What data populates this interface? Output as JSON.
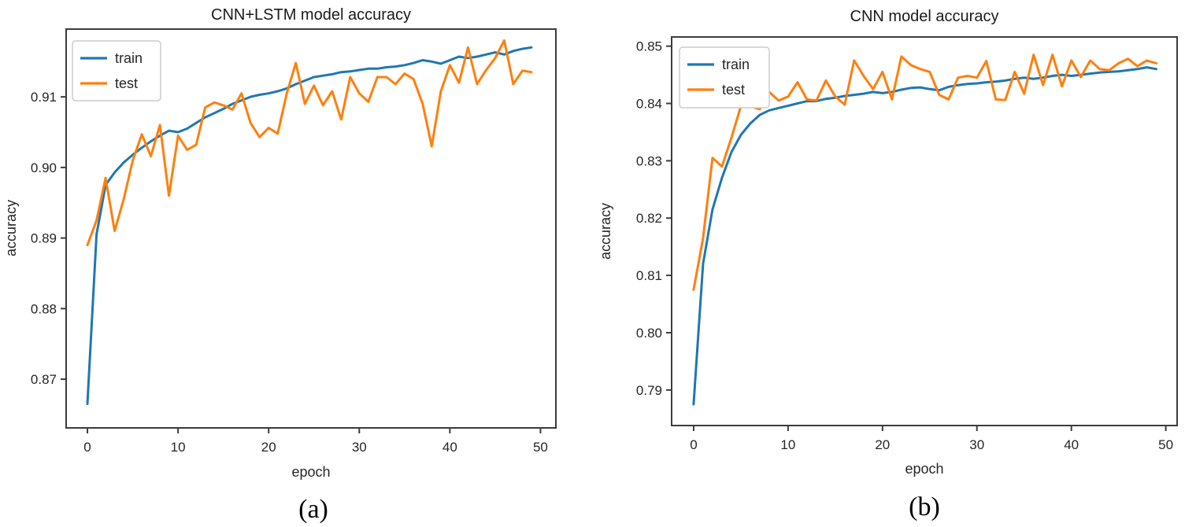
{
  "page": {
    "background": "#ffffff"
  },
  "colors": {
    "train": "#1f77b4",
    "test": "#ff7f0e",
    "frame": "#3c3c3c"
  },
  "chart_data": [
    {
      "id": "a",
      "type": "line",
      "title": "CNN+LSTM model accuracy",
      "xlabel": "epoch",
      "ylabel": "accuracy",
      "caption": "(a)",
      "grid": false,
      "legend_position": "upper left",
      "xlim": [
        -2.35,
        51.7
      ],
      "ylim": [
        0.8631,
        0.9196
      ],
      "xticks": [
        0,
        10,
        20,
        30,
        40,
        50
      ],
      "xtick_labels": [
        "0",
        "10",
        "20",
        "30",
        "40",
        "50"
      ],
      "yticks": [
        0.87,
        0.88,
        0.89,
        0.9,
        0.91
      ],
      "ytick_labels": [
        "0.87",
        "0.88",
        "0.89",
        "0.90",
        "0.91"
      ],
      "epochs": [
        0,
        1,
        2,
        3,
        4,
        5,
        6,
        7,
        8,
        9,
        10,
        11,
        12,
        13,
        14,
        15,
        16,
        17,
        18,
        19,
        20,
        21,
        22,
        23,
        24,
        25,
        26,
        27,
        28,
        29,
        30,
        31,
        32,
        33,
        34,
        35,
        36,
        37,
        38,
        39,
        40,
        41,
        42,
        43,
        44,
        45,
        46,
        47,
        48,
        49
      ],
      "series": [
        {
          "name": "train",
          "color": "#1f77b4",
          "values": [
            0.8665,
            0.8905,
            0.8975,
            0.8993,
            0.9007,
            0.9018,
            0.9028,
            0.9037,
            0.9045,
            0.9052,
            0.905,
            0.9055,
            0.9063,
            0.9071,
            0.9077,
            0.9083,
            0.909,
            0.9095,
            0.91,
            0.9103,
            0.9105,
            0.9108,
            0.9112,
            0.9118,
            0.9123,
            0.9128,
            0.913,
            0.9132,
            0.9135,
            0.9136,
            0.9138,
            0.914,
            0.914,
            0.9142,
            0.9143,
            0.9145,
            0.9148,
            0.9152,
            0.915,
            0.9147,
            0.9152,
            0.9157,
            0.9155,
            0.9157,
            0.916,
            0.9163,
            0.916,
            0.9165,
            0.9168,
            0.917
          ]
        },
        {
          "name": "test",
          "color": "#ff7f0e",
          "values": [
            0.889,
            0.8925,
            0.8985,
            0.891,
            0.8955,
            0.901,
            0.9047,
            0.9016,
            0.906,
            0.896,
            0.9045,
            0.9025,
            0.9032,
            0.9085,
            0.9092,
            0.9088,
            0.9082,
            0.9105,
            0.9063,
            0.9043,
            0.9056,
            0.9048,
            0.9105,
            0.9148,
            0.909,
            0.9116,
            0.9088,
            0.9108,
            0.9068,
            0.9128,
            0.9105,
            0.9093,
            0.9128,
            0.9128,
            0.9118,
            0.9133,
            0.9125,
            0.909,
            0.903,
            0.9108,
            0.9145,
            0.912,
            0.917,
            0.9118,
            0.9138,
            0.9155,
            0.918,
            0.9118,
            0.9137,
            0.9135
          ]
        }
      ]
    },
    {
      "id": "b",
      "type": "line",
      "title": "CNN model accuracy",
      "xlabel": "epoch",
      "ylabel": "accuracy",
      "caption": "(b)",
      "grid": false,
      "legend_position": "upper left",
      "xlim": [
        -2.33,
        51.2
      ],
      "ylim": [
        0.7838,
        0.8516
      ],
      "xticks": [
        0,
        10,
        20,
        30,
        40,
        50
      ],
      "xtick_labels": [
        "0",
        "10",
        "20",
        "30",
        "40",
        "50"
      ],
      "yticks": [
        0.79,
        0.8,
        0.81,
        0.82,
        0.83,
        0.84,
        0.85
      ],
      "ytick_labels": [
        "0.79",
        "0.80",
        "0.81",
        "0.82",
        "0.83",
        "0.84",
        "0.85"
      ],
      "epochs": [
        0,
        1,
        2,
        3,
        4,
        5,
        6,
        7,
        8,
        9,
        10,
        11,
        12,
        13,
        14,
        15,
        16,
        17,
        18,
        19,
        20,
        21,
        22,
        23,
        24,
        25,
        26,
        27,
        28,
        29,
        30,
        31,
        32,
        33,
        34,
        35,
        36,
        37,
        38,
        39,
        40,
        41,
        42,
        43,
        44,
        45,
        46,
        47,
        48,
        49
      ],
      "series": [
        {
          "name": "train",
          "color": "#1f77b4",
          "values": [
            0.7875,
            0.812,
            0.8215,
            0.827,
            0.8315,
            0.8345,
            0.8365,
            0.838,
            0.8388,
            0.8392,
            0.8396,
            0.84,
            0.8404,
            0.8404,
            0.8408,
            0.841,
            0.8413,
            0.8415,
            0.8417,
            0.842,
            0.8418,
            0.842,
            0.8424,
            0.8427,
            0.8428,
            0.8425,
            0.8423,
            0.8429,
            0.8432,
            0.8434,
            0.8435,
            0.8437,
            0.8438,
            0.844,
            0.8443,
            0.8445,
            0.8443,
            0.8445,
            0.8448,
            0.845,
            0.8448,
            0.845,
            0.8452,
            0.8454,
            0.8455,
            0.8456,
            0.8458,
            0.846,
            0.8463,
            0.846
          ]
        },
        {
          "name": "test",
          "color": "#ff7f0e",
          "values": [
            0.8075,
            0.8165,
            0.8305,
            0.829,
            0.834,
            0.8395,
            0.8395,
            0.839,
            0.842,
            0.8405,
            0.8412,
            0.8437,
            0.8407,
            0.8405,
            0.844,
            0.8412,
            0.8398,
            0.8475,
            0.8448,
            0.8425,
            0.8455,
            0.8407,
            0.8482,
            0.8467,
            0.846,
            0.8455,
            0.8415,
            0.8407,
            0.8445,
            0.8448,
            0.8445,
            0.8474,
            0.8407,
            0.8406,
            0.8455,
            0.8417,
            0.8485,
            0.8432,
            0.8485,
            0.843,
            0.8475,
            0.8446,
            0.8475,
            0.846,
            0.8458,
            0.847,
            0.8478,
            0.8465,
            0.8475,
            0.847
          ]
        }
      ]
    }
  ]
}
